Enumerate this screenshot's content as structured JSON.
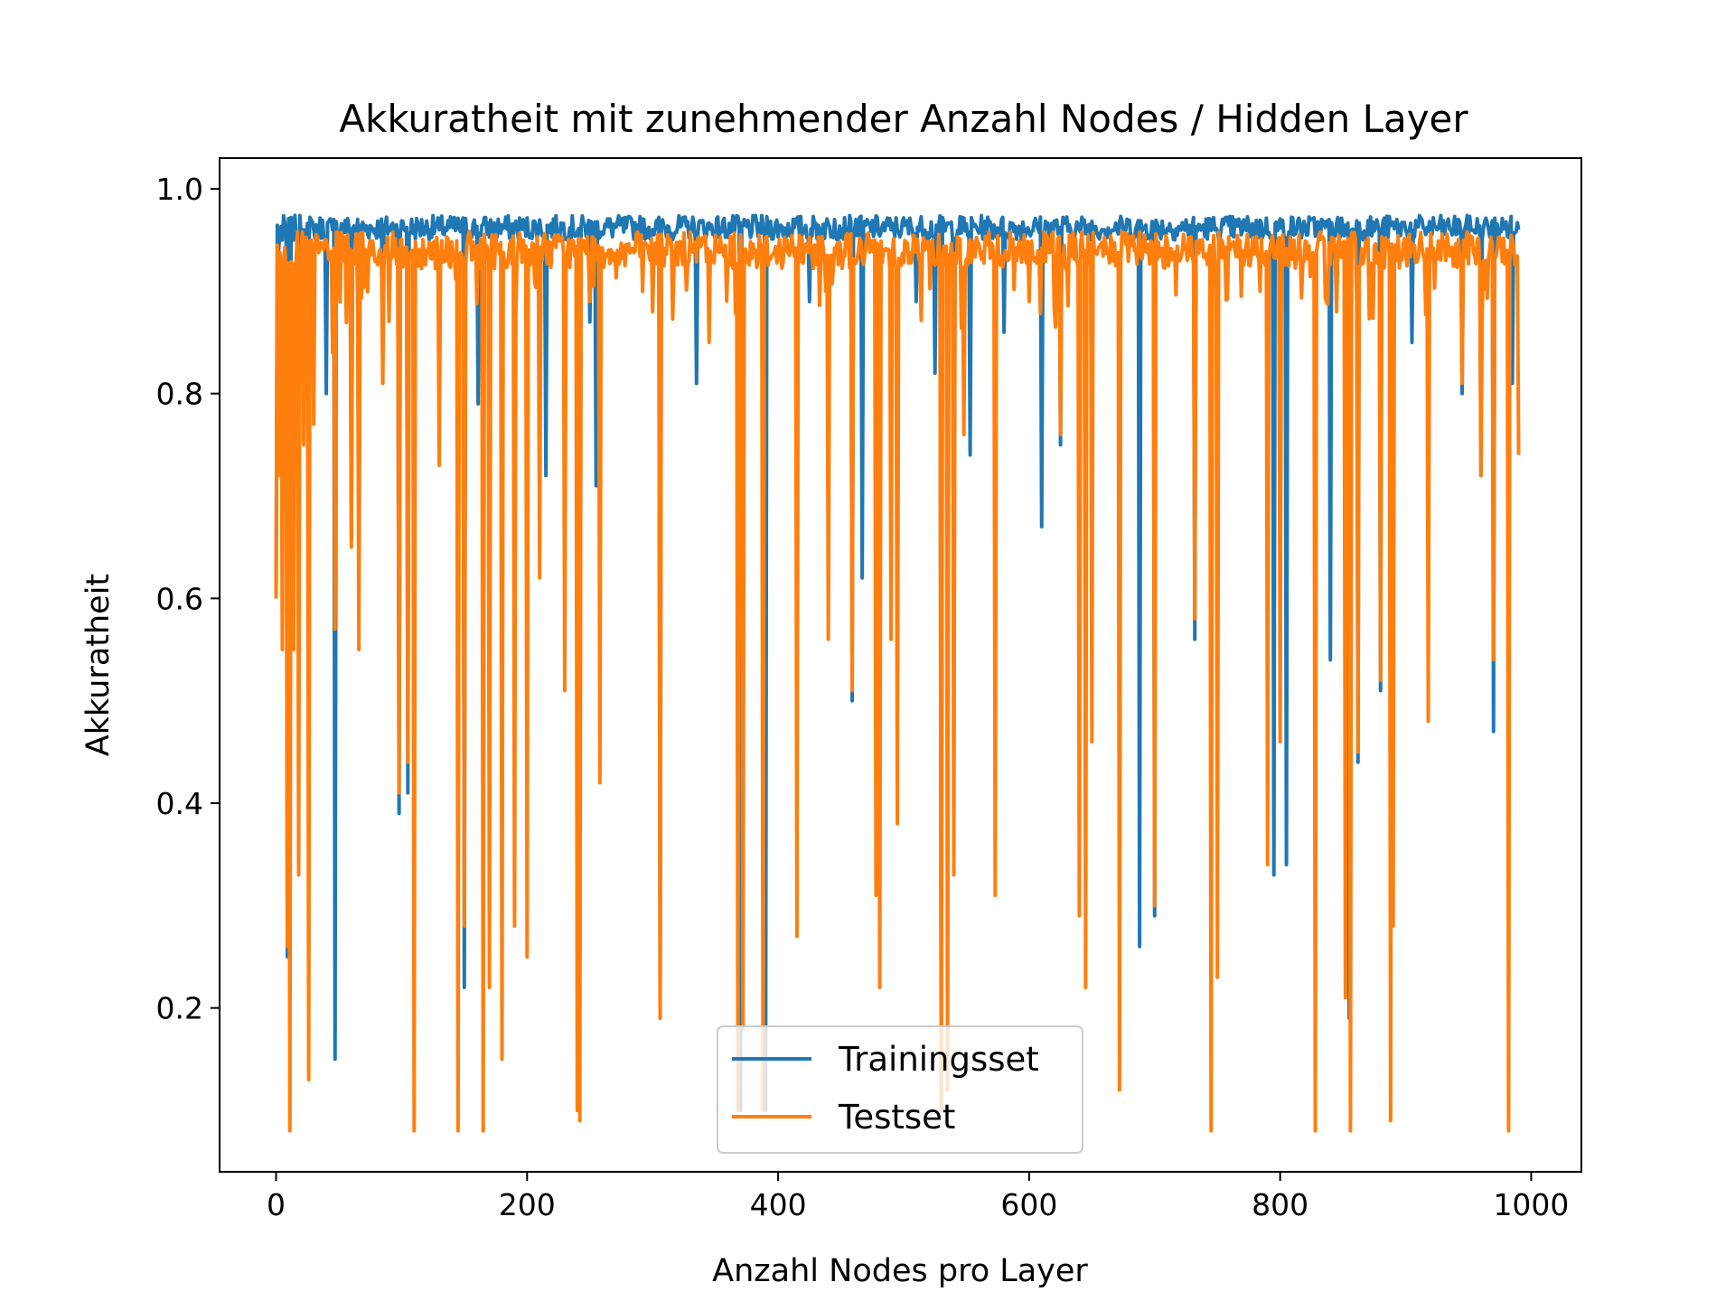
{
  "chart_data": {
    "type": "line",
    "title": "Akkuratheit mit zunehmender Anzahl Nodes / Hidden Layer",
    "xlabel": "Anzahl Nodes pro Layer",
    "ylabel": "Akkuratheit",
    "xlim": [
      -45,
      1040
    ],
    "ylim": [
      0.04,
      1.03
    ],
    "xticks": [
      0,
      200,
      400,
      600,
      800,
      1000
    ],
    "yticks": [
      0.2,
      0.4,
      0.6,
      0.8,
      1.0
    ],
    "xtick_labels": [
      "0",
      "200",
      "400",
      "600",
      "800",
      "1000"
    ],
    "ytick_labels": [
      "0.2",
      "0.4",
      "0.6",
      "0.8",
      "1.0"
    ],
    "grid": false,
    "legend_position": "bottom-center",
    "x_range": [
      0,
      990
    ],
    "series": [
      {
        "name": "Trainingsset",
        "color": "#1f77b4",
        "baseline": 0.962,
        "x": [
          0,
          2,
          5,
          9,
          11,
          14,
          18,
          22,
          26,
          30,
          40,
          45,
          47,
          60,
          66,
          85,
          98,
          105,
          130,
          150,
          161,
          175,
          215,
          242,
          250,
          255,
          300,
          306,
          335,
          370,
          390,
          425,
          445,
          459,
          467,
          490,
          510,
          525,
          530,
          540,
          553,
          580,
          610,
          625,
          640,
          660,
          688,
          700,
          732,
          748,
          795,
          805,
          840,
          855,
          862,
          880,
          905,
          945,
          960,
          970,
          985,
          990
        ],
        "values": [
          0.6,
          0.94,
          0.95,
          0.25,
          0.24,
          0.95,
          0.75,
          0.96,
          0.94,
          0.96,
          0.8,
          0.96,
          0.15,
          0.66,
          0.63,
          0.83,
          0.39,
          0.41,
          0.96,
          0.22,
          0.79,
          0.95,
          0.72,
          0.25,
          0.87,
          0.71,
          0.96,
          0.19,
          0.81,
          0.1,
          0.1,
          0.89,
          0.97,
          0.5,
          0.62,
          0.96,
          0.89,
          0.82,
          0.1,
          0.54,
          0.74,
          0.86,
          0.67,
          0.75,
          0.96,
          0.96,
          0.26,
          0.29,
          0.56,
          0.96,
          0.33,
          0.34,
          0.54,
          0.19,
          0.44,
          0.51,
          0.85,
          0.8,
          0.72,
          0.47,
          0.81,
          0.96
        ]
      },
      {
        "name": "Testset",
        "color": "#ff7f0e",
        "baseline": 0.94,
        "x": [
          0,
          2,
          5,
          9,
          11,
          14,
          18,
          22,
          26,
          30,
          40,
          45,
          47,
          60,
          66,
          85,
          98,
          105,
          110,
          130,
          145,
          150,
          165,
          170,
          180,
          190,
          200,
          210,
          230,
          240,
          242,
          250,
          258,
          300,
          306,
          345,
          368,
          372,
          388,
          415,
          440,
          459,
          478,
          481,
          490,
          495,
          530,
          535,
          540,
          548,
          573,
          600,
          625,
          640,
          645,
          650,
          672,
          700,
          732,
          745,
          750,
          790,
          800,
          828,
          845,
          852,
          856,
          862,
          880,
          888,
          890,
          918,
          945,
          960,
          970,
          982,
          985,
          990
        ],
        "values": [
          0.6,
          0.72,
          0.55,
          0.26,
          0.08,
          0.55,
          0.33,
          0.75,
          0.13,
          0.77,
          0.95,
          0.84,
          0.57,
          0.65,
          0.55,
          0.81,
          0.41,
          0.44,
          0.08,
          0.73,
          0.08,
          0.28,
          0.08,
          0.22,
          0.15,
          0.28,
          0.25,
          0.62,
          0.51,
          0.1,
          0.09,
          0.89,
          0.42,
          0.88,
          0.19,
          0.85,
          0.1,
          0.18,
          0.1,
          0.27,
          0.56,
          0.51,
          0.31,
          0.22,
          0.56,
          0.38,
          0.1,
          0.12,
          0.33,
          0.76,
          0.31,
          0.89,
          0.76,
          0.29,
          0.22,
          0.46,
          0.12,
          0.3,
          0.58,
          0.08,
          0.23,
          0.34,
          0.46,
          0.08,
          0.88,
          0.21,
          0.08,
          0.45,
          0.52,
          0.09,
          0.28,
          0.48,
          0.81,
          0.72,
          0.54,
          0.08,
          0.95,
          0.74
        ]
      }
    ]
  }
}
